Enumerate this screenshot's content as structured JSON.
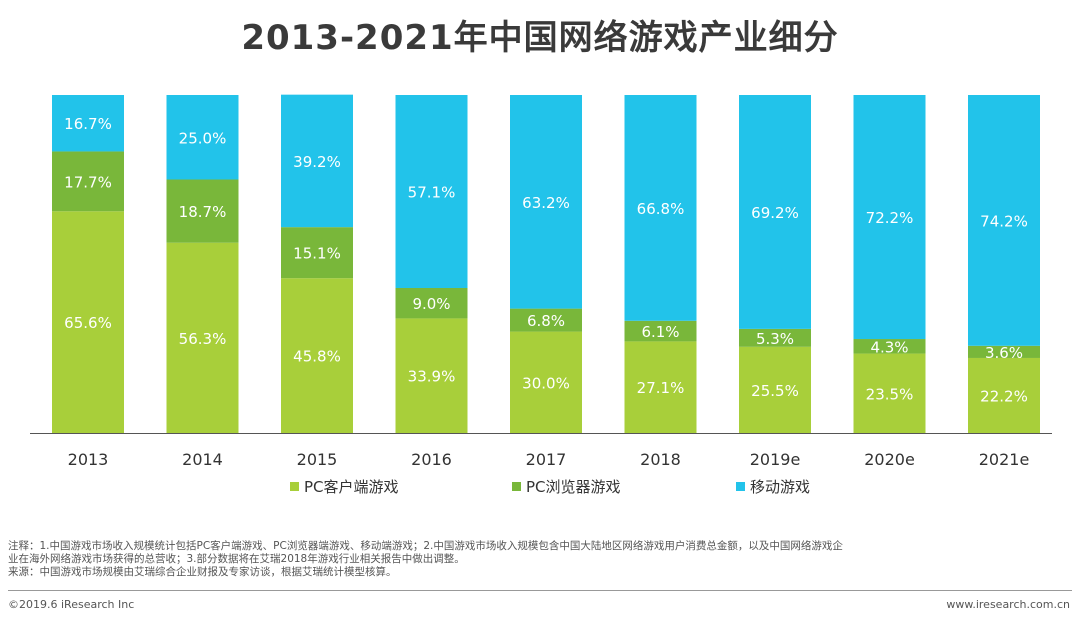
{
  "title": "2013-2021年中国网络游戏产业细分",
  "colors": {
    "pc_client": "#a8cf3a",
    "pc_browser": "#79b73a",
    "mobile": "#22c3ea",
    "axis": "#555555",
    "label": "#ffffff"
  },
  "chart_data": {
    "type": "bar",
    "stacked": true,
    "percent": true,
    "title": "2013-2021年中国网络游戏产业细分",
    "categories": [
      "2013",
      "2014",
      "2015",
      "2016",
      "2017",
      "2018",
      "2019e",
      "2020e",
      "2021e"
    ],
    "series": [
      {
        "name": "PC客户端游戏",
        "color_key": "pc_client",
        "values": [
          65.6,
          56.3,
          45.8,
          33.9,
          30.0,
          27.1,
          25.5,
          23.5,
          22.2
        ],
        "labels": [
          "65.6%",
          "56.3%",
          "45.8%",
          "33.9%",
          "30.0%",
          "27.1%",
          "25.5%",
          "23.5%",
          "22.2%"
        ]
      },
      {
        "name": "PC浏览器游戏",
        "color_key": "pc_browser",
        "values": [
          17.7,
          18.7,
          15.1,
          9.0,
          6.8,
          6.1,
          5.3,
          4.3,
          3.6
        ],
        "labels": [
          "17.7%",
          "18.7%",
          "15.1%",
          "9.0%",
          "6.8%",
          "6.1%",
          "5.3%",
          "4.3%",
          "3.6%"
        ]
      },
      {
        "name": "移动游戏",
        "color_key": "mobile",
        "values": [
          16.7,
          25.0,
          39.2,
          57.1,
          63.2,
          66.8,
          69.2,
          72.2,
          74.2
        ],
        "labels": [
          "16.7%",
          "25.0%",
          "39.2%",
          "57.1%",
          "63.2%",
          "66.8%",
          "69.2%",
          "72.2%",
          "74.2%"
        ]
      }
    ],
    "ylim": [
      0,
      100
    ],
    "legend_position": "bottom"
  },
  "legend": [
    {
      "label": "PC客户端游戏",
      "color_key": "pc_client"
    },
    {
      "label": "PC浏览器游戏",
      "color_key": "pc_browser"
    },
    {
      "label": "移动游戏",
      "color_key": "mobile"
    }
  ],
  "notes": {
    "line1": "注释：1.中国游戏市场收入规模统计包括PC客户端游戏、PC浏览器端游戏、移动端游戏；2.中国游戏市场收入规模包含中国大陆地区网络游戏用户消费总金额，以及中国网络游戏企",
    "line2": "业在海外网络游戏市场获得的总营收；3.部分数据将在艾瑞2018年游戏行业相关报告中做出调整。",
    "line3": "来源：中国游戏市场规模由艾瑞综合企业财报及专家访谈，根据艾瑞统计模型核算。"
  },
  "footer": {
    "copyright": "©2019.6 iResearch Inc",
    "website": "www.iresearch.com.cn"
  }
}
